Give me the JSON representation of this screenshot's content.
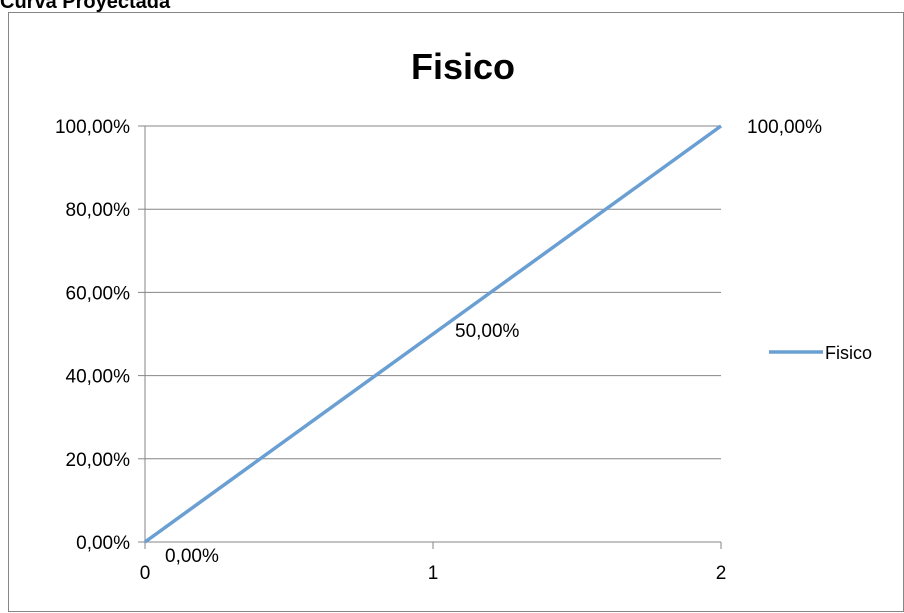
{
  "header": {
    "title": "Curva Proyectada"
  },
  "chart_data": {
    "type": "line",
    "title": "Fisico",
    "xlabel": "",
    "ylabel": "",
    "x": [
      0,
      1,
      2
    ],
    "x_ticks": [
      "0",
      "1",
      "2"
    ],
    "y_ticks": [
      "0,00%",
      "20,00%",
      "40,00%",
      "60,00%",
      "80,00%",
      "100,00%"
    ],
    "ylim": [
      0,
      1
    ],
    "xlim": [
      0,
      2
    ],
    "series": [
      {
        "name": "Fisico",
        "values": [
          0,
          0.5,
          1
        ],
        "labels": [
          "0,00%",
          "50,00%",
          "100,00%"
        ],
        "color": "#6a9fd4"
      }
    ],
    "grid": true,
    "legend_position": "right"
  }
}
